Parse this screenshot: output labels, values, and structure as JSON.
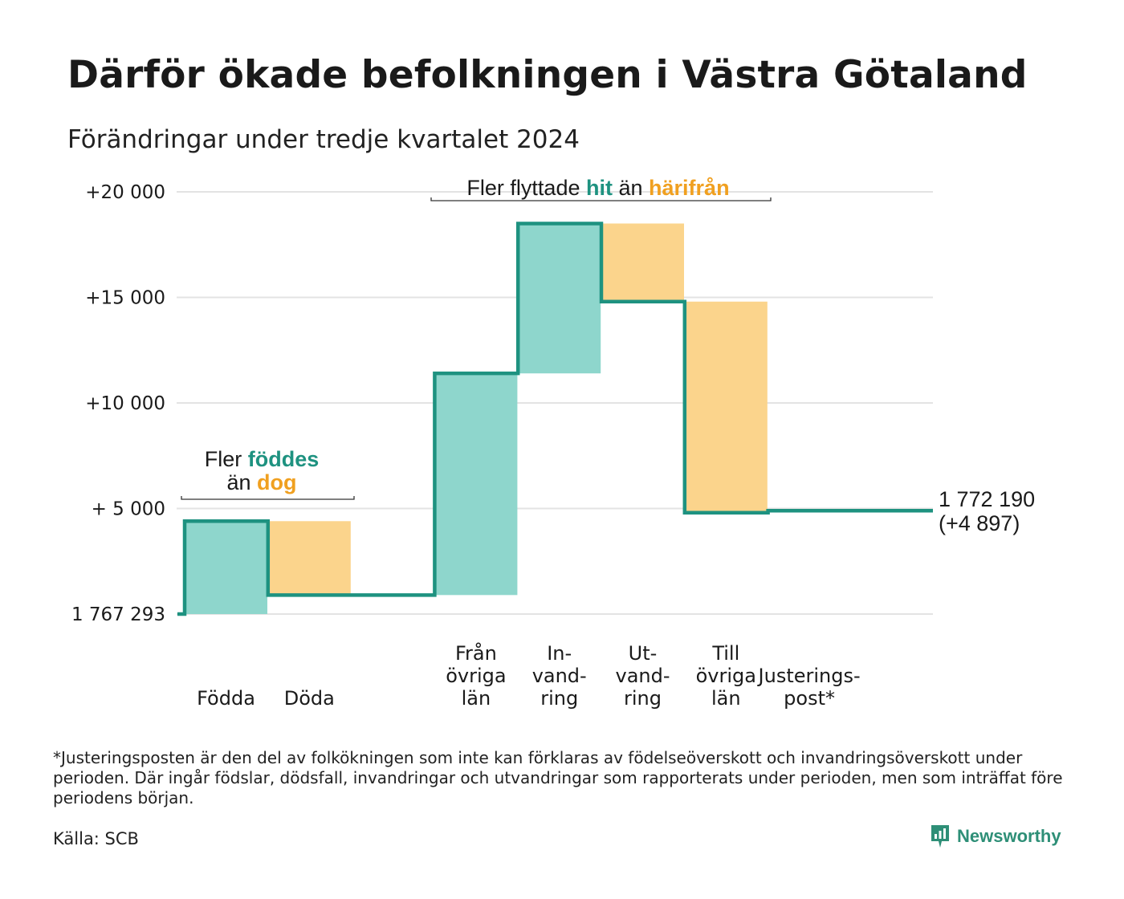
{
  "header": {
    "title": "Därför ökade befolkningen i Västra Götaland",
    "subtitle": "Förändringar under tredje kvartalet 2024"
  },
  "footer": {
    "note": "*Justeringsposten är den del av folkökningen som inte kan förklaras av födelseöverskott och invandringsöverskott under perioden. Där ingår födslar, dödsfall, invandringar och utvandringar som rapporterats under perioden, men som inträffat före periodens början.",
    "source": "Källa: SCB",
    "brand": "Newsworthy"
  },
  "colors": {
    "increase": "#8ed6cc",
    "decrease": "#fbd48c",
    "line": "#1e9280",
    "highlight_teal": "#1e9280",
    "highlight_orange": "#f0a020",
    "grid": "#e3e3e3"
  },
  "chart_data": {
    "type": "waterfall",
    "start_label": "1 767 293",
    "end_label_lines": [
      "1 772 190",
      "(+4 897)"
    ],
    "y_ticks": [
      {
        "value": 0,
        "label": "1 767 293"
      },
      {
        "value": 5000,
        "label": "+ 5 000"
      },
      {
        "value": 10000,
        "label": "+10 000"
      },
      {
        "value": 15000,
        "label": "+15 000"
      },
      {
        "value": 20000,
        "label": "+20 000"
      }
    ],
    "ylim": [
      0,
      20000
    ],
    "grid": true,
    "steps": [
      {
        "label_lines": [
          "Födda"
        ],
        "from": 0,
        "to": 4400,
        "kind": "increase"
      },
      {
        "label_lines": [
          "Döda"
        ],
        "from": 4400,
        "to": 900,
        "kind": "decrease"
      },
      {
        "label_lines": [
          ""
        ],
        "from": 900,
        "to": 900,
        "kind": "gap"
      },
      {
        "label_lines": [
          "Från",
          "övriga",
          "län"
        ],
        "from": 900,
        "to": 11400,
        "kind": "increase"
      },
      {
        "label_lines": [
          "In-",
          "vand-",
          "ring"
        ],
        "from": 11400,
        "to": 18500,
        "kind": "increase"
      },
      {
        "label_lines": [
          "Ut-",
          "vand-",
          "ring"
        ],
        "from": 18500,
        "to": 14800,
        "kind": "decrease"
      },
      {
        "label_lines": [
          "Till",
          "övriga",
          "län"
        ],
        "from": 14800,
        "to": 4800,
        "kind": "decrease"
      },
      {
        "label_lines": [
          "Justerings-",
          "post*"
        ],
        "from": 4800,
        "to": 4897,
        "kind": "adjustment"
      }
    ],
    "annotations": {
      "births": {
        "lines": [
          [
            {
              "t": "Fler ",
              "c": "plain"
            },
            {
              "t": "föddes",
              "c": "teal"
            }
          ],
          [
            {
              "t": "än ",
              "c": "plain"
            },
            {
              "t": "dog",
              "c": "orange"
            }
          ]
        ]
      },
      "migration": {
        "lines": [
          [
            {
              "t": "Fler flyttade ",
              "c": "plain"
            },
            {
              "t": "hit",
              "c": "teal"
            },
            {
              "t": " än ",
              "c": "plain"
            },
            {
              "t": "härifrån",
              "c": "orange"
            }
          ]
        ]
      }
    }
  }
}
